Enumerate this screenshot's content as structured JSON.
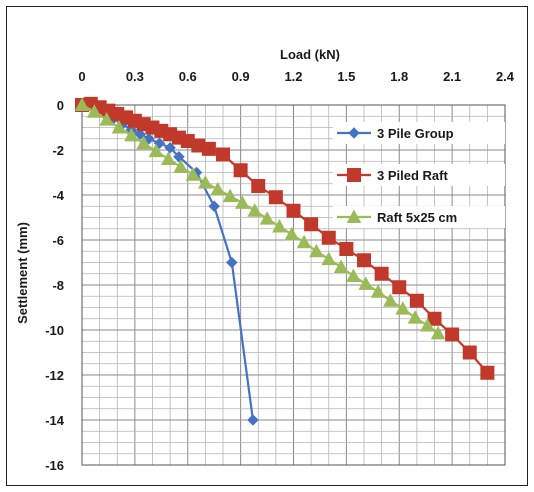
{
  "chart_data": {
    "type": "line",
    "xlabel": "Load (kN)",
    "ylabel": "Settlement (mm)",
    "xlim": [
      0,
      2.4
    ],
    "ylim": [
      -16,
      0
    ],
    "xticks": [
      "0",
      "0.3",
      "0.6",
      "0.9",
      "1.2",
      "1.5",
      "1.8",
      "2.1",
      "2.4"
    ],
    "yticks": [
      "0",
      "-2",
      "-4",
      "-6",
      "-8",
      "-10",
      "-12",
      "-14",
      "-16"
    ],
    "x_axis_position": "top",
    "grid": true,
    "legend_position": "top-right",
    "series": [
      {
        "name": "3 Pile Group",
        "color": "#4472C4",
        "marker": "diamond",
        "points": [
          [
            0.0,
            0.0
          ],
          [
            0.03,
            0.0
          ],
          [
            0.08,
            -0.1
          ],
          [
            0.13,
            -0.3
          ],
          [
            0.18,
            -0.6
          ],
          [
            0.23,
            -0.85
          ],
          [
            0.28,
            -1.1
          ],
          [
            0.33,
            -1.3
          ],
          [
            0.38,
            -1.5
          ],
          [
            0.44,
            -1.7
          ],
          [
            0.5,
            -1.9
          ],
          [
            0.55,
            -2.3
          ],
          [
            0.65,
            -3.0
          ],
          [
            0.75,
            -4.5
          ],
          [
            0.85,
            -7.0
          ],
          [
            0.97,
            -14.0
          ]
        ]
      },
      {
        "name": "3 Piled Raft",
        "color": "#C0392B",
        "marker": "square",
        "points": [
          [
            0.0,
            0.0
          ],
          [
            0.05,
            0.05
          ],
          [
            0.1,
            -0.1
          ],
          [
            0.15,
            -0.25
          ],
          [
            0.2,
            -0.4
          ],
          [
            0.25,
            -0.55
          ],
          [
            0.3,
            -0.7
          ],
          [
            0.35,
            -0.85
          ],
          [
            0.4,
            -1.0
          ],
          [
            0.45,
            -1.15
          ],
          [
            0.5,
            -1.3
          ],
          [
            0.55,
            -1.45
          ],
          [
            0.6,
            -1.6
          ],
          [
            0.66,
            -1.8
          ],
          [
            0.72,
            -1.95
          ],
          [
            0.8,
            -2.2
          ],
          [
            0.9,
            -2.9
          ],
          [
            1.0,
            -3.6
          ],
          [
            1.1,
            -4.1
          ],
          [
            1.2,
            -4.7
          ],
          [
            1.3,
            -5.3
          ],
          [
            1.4,
            -5.9
          ],
          [
            1.5,
            -6.4
          ],
          [
            1.6,
            -6.9
          ],
          [
            1.7,
            -7.5
          ],
          [
            1.8,
            -8.1
          ],
          [
            1.9,
            -8.7
          ],
          [
            2.0,
            -9.5
          ],
          [
            2.1,
            -10.2
          ],
          [
            2.2,
            -11.0
          ],
          [
            2.3,
            -11.9
          ]
        ]
      },
      {
        "name": "Raft 5x25 cm",
        "color": "#9BBB59",
        "marker": "triangle",
        "points": [
          [
            0.0,
            0.0
          ],
          [
            0.07,
            -0.3
          ],
          [
            0.14,
            -0.65
          ],
          [
            0.21,
            -1.0
          ],
          [
            0.28,
            -1.35
          ],
          [
            0.35,
            -1.7
          ],
          [
            0.42,
            -2.05
          ],
          [
            0.49,
            -2.4
          ],
          [
            0.56,
            -2.75
          ],
          [
            0.63,
            -3.1
          ],
          [
            0.7,
            -3.45
          ],
          [
            0.77,
            -3.75
          ],
          [
            0.84,
            -4.05
          ],
          [
            0.91,
            -4.35
          ],
          [
            0.98,
            -4.7
          ],
          [
            1.05,
            -5.05
          ],
          [
            1.12,
            -5.4
          ],
          [
            1.19,
            -5.75
          ],
          [
            1.26,
            -6.1
          ],
          [
            1.33,
            -6.5
          ],
          [
            1.4,
            -6.85
          ],
          [
            1.47,
            -7.2
          ],
          [
            1.54,
            -7.6
          ],
          [
            1.61,
            -7.95
          ],
          [
            1.68,
            -8.3
          ],
          [
            1.75,
            -8.7
          ],
          [
            1.82,
            -9.05
          ],
          [
            1.89,
            -9.45
          ],
          [
            1.96,
            -9.8
          ],
          [
            2.02,
            -10.15
          ]
        ]
      }
    ]
  }
}
